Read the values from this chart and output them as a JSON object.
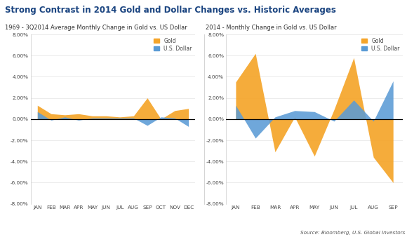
{
  "title": "Strong Contrast in 2014 Gold and Dollar Changes vs. Historic Averages",
  "subtitle_left": "1969 - 3Q2014 Average Monthly Change in Gold vs. US Dollar",
  "subtitle_right": "2014 - Monthly Change in Gold vs. US Dollar",
  "source": "Source: Bloomberg, U.S. Global Investors",
  "gold_color": "#F5A52A",
  "dollar_color": "#5B9BD5",
  "bg_color": "#FFFFFF",
  "ylim": [
    -0.08,
    0.08
  ],
  "yticks": [
    -0.08,
    -0.06,
    -0.04,
    -0.02,
    0.0,
    0.02,
    0.04,
    0.06,
    0.08
  ],
  "left_months": [
    "JAN",
    "FEB",
    "MAR",
    "APR",
    "MAY",
    "JUN",
    "JUL",
    "AUG",
    "SEP",
    "OCT",
    "NOV",
    "DEC"
  ],
  "left_gold": [
    0.013,
    0.005,
    0.004,
    0.005,
    0.003,
    0.003,
    0.002,
    0.003,
    0.02,
    0.0,
    0.008,
    0.01
  ],
  "left_dollar": [
    0.007,
    -0.001,
    0.002,
    -0.001,
    0.001,
    0.001,
    0.001,
    0.001,
    -0.006,
    0.002,
    0.001,
    -0.007
  ],
  "right_months": [
    "JAN",
    "FEB",
    "MAR",
    "APR",
    "MAY",
    "JUN",
    "JUL",
    "AUG",
    "SEP"
  ],
  "right_gold": [
    0.035,
    0.062,
    -0.031,
    0.002,
    -0.035,
    0.009,
    0.058,
    -0.036,
    -0.06
  ],
  "right_dollar": [
    0.013,
    -0.018,
    0.002,
    0.008,
    0.007,
    -0.002,
    0.018,
    -0.002,
    0.036
  ]
}
